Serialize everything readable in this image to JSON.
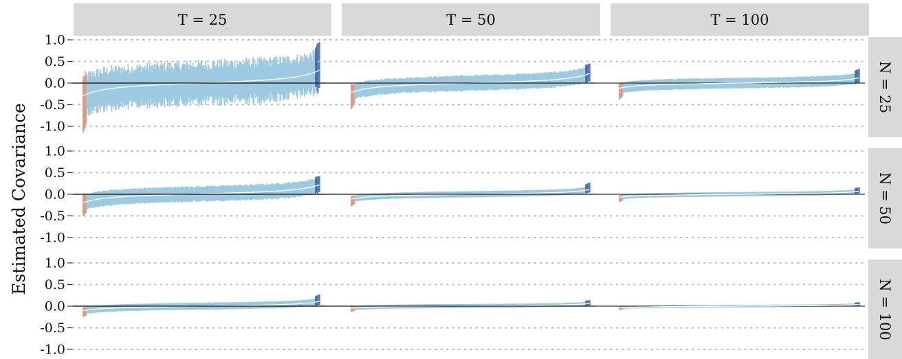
{
  "chart_data": {
    "type": "bar",
    "ylabel": "Estimated Covariance",
    "col_facets": [
      "T = 25",
      "T = 50",
      "T = 100"
    ],
    "row_facets": [
      "N = 25",
      "N = 50",
      "N = 100"
    ],
    "yticks": [
      1.0,
      0.5,
      0.0,
      -0.5,
      -1.0
    ],
    "ytick_labels": [
      "1.0",
      "0.5",
      "0.0",
      "-0.5",
      "-1.0"
    ],
    "ylim": [
      -1.15,
      1.0
    ],
    "grid": "horizontal dotted",
    "n_intervals_per_panel": 300,
    "x_order": "intervals sorted by point estimate (ascending)",
    "colors": {
      "interval": "#9ecae1",
      "point_estimate_line": "#ffffff",
      "zero_line": "#333333",
      "low_tail": "#ef8a62",
      "high_tail": "#2c4f9e",
      "strip_background": "#d9d9d9",
      "grid": "#bbbbbb"
    },
    "panels": [
      {
        "row": "N = 25",
        "col": "T = 25",
        "est_min": -0.3,
        "est_max": 0.3,
        "halfwidth": 0.42,
        "halfwidth_cv": 0.3,
        "tail_min": -1.15,
        "tail_max": 0.95
      },
      {
        "row": "N = 25",
        "col": "T = 50",
        "est_min": -0.22,
        "est_max": 0.22,
        "halfwidth": 0.17,
        "halfwidth_cv": 0.12,
        "tail_min": -0.6,
        "tail_max": 0.45
      },
      {
        "row": "N = 25",
        "col": "T = 100",
        "est_min": -0.12,
        "est_max": 0.12,
        "halfwidth": 0.12,
        "halfwidth_cv": 0.08,
        "tail_min": -0.38,
        "tail_max": 0.33
      },
      {
        "row": "N = 50",
        "col": "T = 25",
        "est_min": -0.2,
        "est_max": 0.22,
        "halfwidth": 0.17,
        "halfwidth_cv": 0.12,
        "tail_min": -0.5,
        "tail_max": 0.42
      },
      {
        "row": "N = 50",
        "col": "T = 50",
        "est_min": -0.11,
        "est_max": 0.11,
        "halfwidth": 0.07,
        "halfwidth_cv": 0.06,
        "tail_min": -0.28,
        "tail_max": 0.27
      },
      {
        "row": "N = 50",
        "col": "T = 100",
        "est_min": -0.07,
        "est_max": 0.07,
        "halfwidth": 0.05,
        "halfwidth_cv": 0.05,
        "tail_min": -0.18,
        "tail_max": 0.16
      },
      {
        "row": "N = 100",
        "col": "T = 25",
        "est_min": -0.11,
        "est_max": 0.11,
        "halfwidth": 0.08,
        "halfwidth_cv": 0.06,
        "tail_min": -0.25,
        "tail_max": 0.27
      },
      {
        "row": "N = 100",
        "col": "T = 50",
        "est_min": -0.05,
        "est_max": 0.06,
        "halfwidth": 0.045,
        "halfwidth_cv": 0.05,
        "tail_min": -0.13,
        "tail_max": 0.14
      },
      {
        "row": "N = 100",
        "col": "T = 100",
        "est_min": -0.04,
        "est_max": 0.04,
        "halfwidth": 0.03,
        "halfwidth_cv": 0.05,
        "tail_min": -0.09,
        "tail_max": 0.09
      }
    ]
  }
}
